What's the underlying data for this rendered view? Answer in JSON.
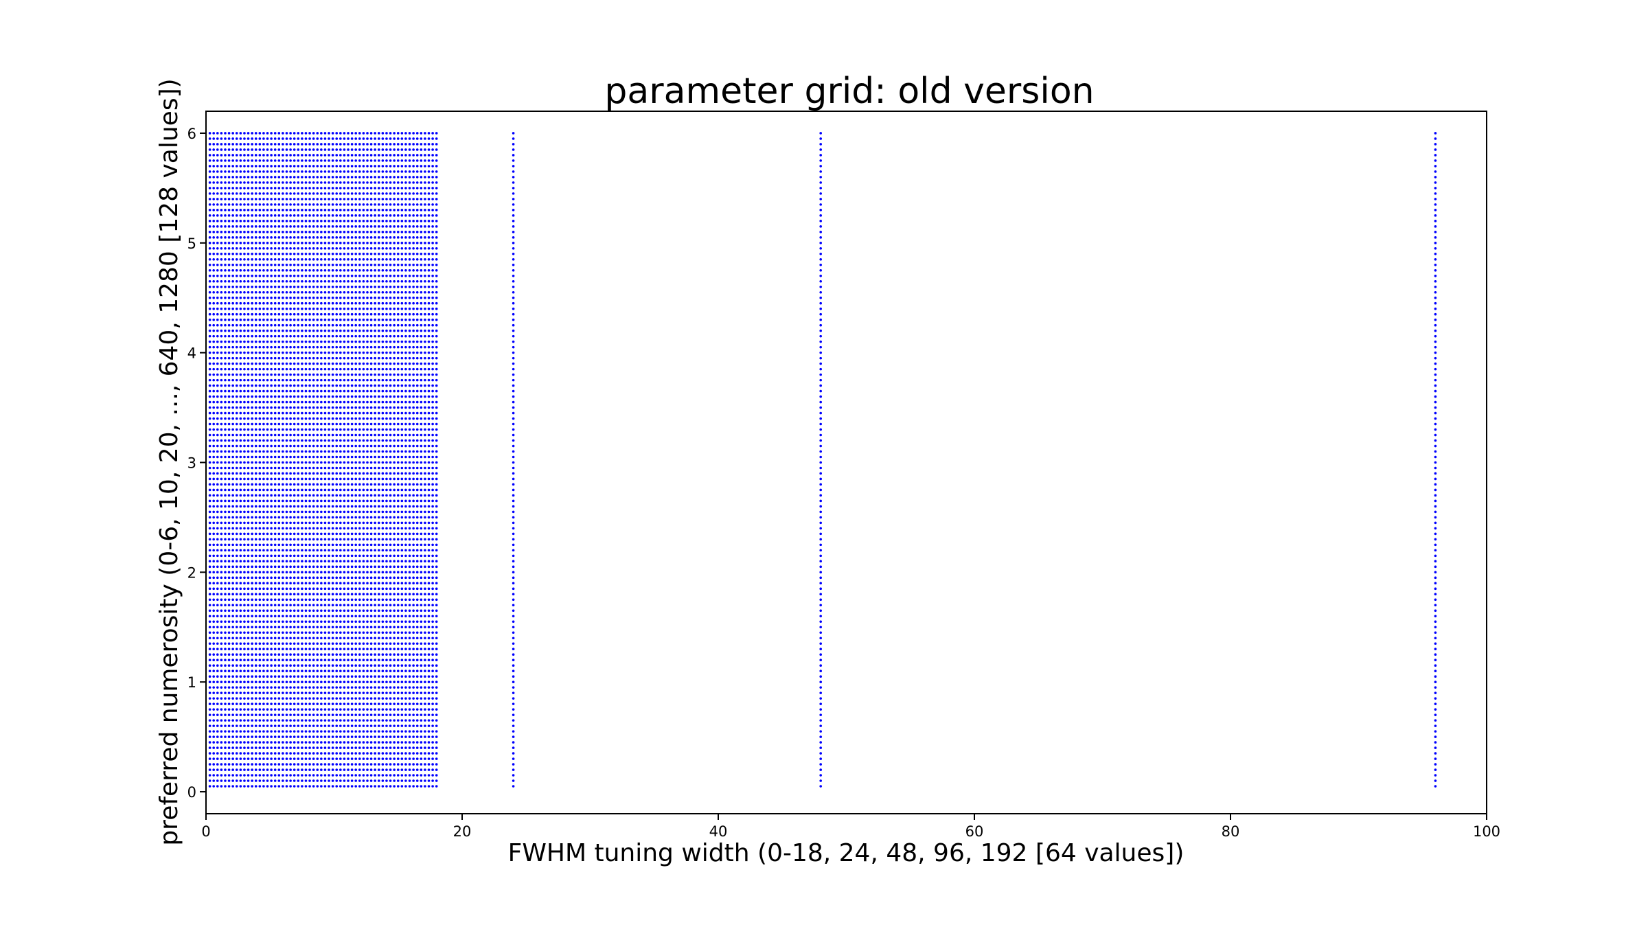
{
  "chart_data": {
    "type": "scatter",
    "title": "parameter grid: old version",
    "xlabel": "FWHM tuning width (0-18, 24, 48, 96, 192 [64 values])",
    "ylabel": "preferred numerosity (0-6, 10, 20, ..., 640, 1280 [128 values])",
    "xlim": [
      0,
      100
    ],
    "ylim": [
      -0.2,
      6.2
    ],
    "xticks": [
      0,
      20,
      40,
      60,
      80,
      100
    ],
    "yticks": [
      0,
      1,
      2,
      3,
      4,
      5,
      6
    ],
    "grid": false,
    "legend": "none",
    "marker_color": "#0000ff",
    "series": [
      {
        "x_dense": {
          "start": 0.3,
          "end": 18.0,
          "count": 60
        },
        "x_extra": [
          24,
          48,
          96
        ],
        "y": {
          "start": 0.05,
          "end": 6.0,
          "count": 120
        }
      }
    ]
  }
}
